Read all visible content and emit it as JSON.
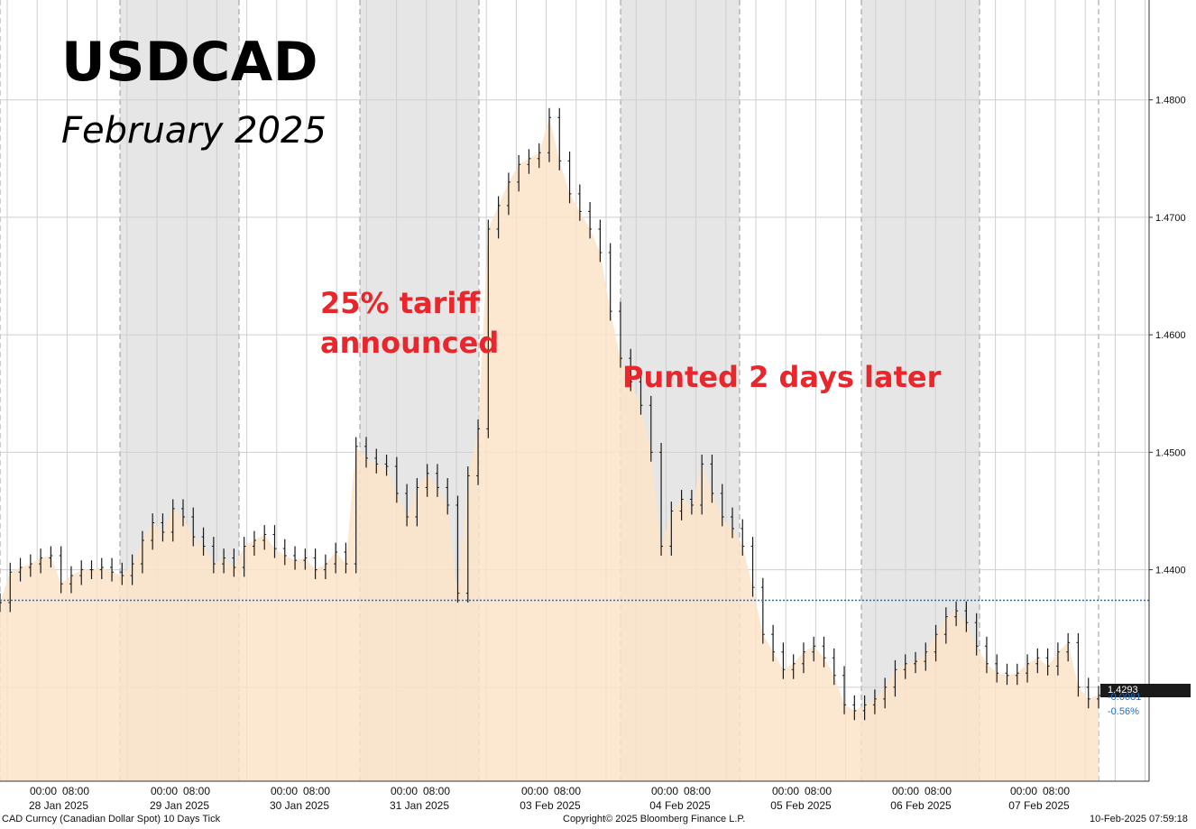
{
  "title": "USDCAD",
  "subtitle": "February 2025",
  "annotations": {
    "tariff_line1": "25% tariff",
    "tariff_line2": "announced",
    "punted": "Punted 2 days later"
  },
  "footer": {
    "left": "CAD Curncy (Canadian Dollar Spot) 10 Days  Tick",
    "center": "Copyright© 2025 Bloomberg Finance L.P.",
    "right": "10-Feb-2025 07:59:18"
  },
  "last_value": {
    "label": "1.4293",
    "change": "-0.0081",
    "change_pct": "-0.56%"
  },
  "colors": {
    "area_fill": "#fbe3c8",
    "weekend_shade": "#e6e6e6",
    "reference_line": "#1d6fd6",
    "annotation": "#e8262c",
    "bars": "#1a1a1a"
  },
  "chart_data": {
    "type": "area",
    "ylim": [
      1.422,
      1.4885
    ],
    "yticks": [
      "1.4300",
      "1.4400",
      "1.4500",
      "1.4600",
      "1.4700",
      "1.4800"
    ],
    "y_axis_position": "right",
    "grid": true,
    "reference_level": 1.4374,
    "days": [
      "28 Jan 2025",
      "29 Jan 2025",
      "30 Jan 2025",
      "31 Jan 2025",
      "03 Feb 2025",
      "04 Feb 2025",
      "05 Feb 2025",
      "06 Feb 2025",
      "07 Feb 2025"
    ],
    "hour_ticks": [
      "00:00",
      "08:00"
    ],
    "session_ticks_hours_from_start": [
      24,
      48,
      72,
      96,
      120,
      144,
      168,
      192
    ],
    "x_start": "27 Jan 2025 14:00",
    "shaded_hours": [
      [
        0,
        0
      ],
      [
        0,
        0
      ]
    ],
    "series": [
      {
        "hours": [
          0,
          2,
          4,
          6,
          8,
          10,
          12,
          14,
          16,
          18,
          20,
          22,
          24,
          26,
          28,
          30,
          32,
          34,
          36,
          38,
          40,
          42,
          44,
          46,
          48,
          50,
          52,
          54,
          56,
          58,
          60,
          62,
          64,
          66,
          68,
          70,
          72,
          74,
          76,
          78,
          80,
          82,
          84,
          86,
          88,
          90,
          92,
          94,
          96,
          98,
          100,
          102,
          104,
          106,
          108,
          110,
          112,
          114,
          116,
          118,
          120,
          122,
          124,
          126,
          128,
          130,
          132,
          134,
          136,
          138,
          140,
          142,
          144,
          146,
          148,
          150,
          152,
          154,
          156,
          158,
          160,
          162,
          164,
          166,
          168,
          170,
          172,
          174,
          176,
          178,
          180,
          182,
          184,
          186,
          188,
          190,
          192,
          194,
          196,
          198,
          200,
          202,
          204,
          206,
          208,
          210,
          212,
          214,
          216
        ],
        "values": [
          1.4372,
          1.4398,
          1.4402,
          1.4405,
          1.441,
          1.4412,
          1.4388,
          1.4395,
          1.44,
          1.44,
          1.4402,
          1.4398,
          1.4395,
          1.4405,
          1.4425,
          1.444,
          1.4432,
          1.4452,
          1.4445,
          1.4428,
          1.442,
          1.4405,
          1.441,
          1.4402,
          1.442,
          1.4425,
          1.443,
          1.4418,
          1.4412,
          1.4408,
          1.441,
          1.44,
          1.4405,
          1.4415,
          1.4405,
          1.4505,
          1.4495,
          1.449,
          1.4488,
          1.4465,
          1.4445,
          1.447,
          1.4482,
          1.447,
          1.4455,
          1.438,
          1.448,
          1.452,
          1.469,
          1.471,
          1.473,
          1.4745,
          1.475,
          1.4755,
          1.4785,
          1.4748,
          1.472,
          1.4705,
          1.469,
          1.467,
          1.462,
          1.458,
          1.456,
          1.454,
          1.45,
          1.442,
          1.445,
          1.446,
          1.4455,
          1.449,
          1.4465,
          1.4445,
          1.4435,
          1.442,
          1.4385,
          1.4345,
          1.433,
          1.4315,
          1.432,
          1.433,
          1.4335,
          1.4325,
          1.431,
          1.4285,
          1.428,
          1.4285,
          1.429,
          1.43,
          1.4315,
          1.432,
          1.4322,
          1.433,
          1.4345,
          1.436,
          1.4365,
          1.4355,
          1.4335,
          1.432,
          1.4312,
          1.431,
          1.4312,
          1.432,
          1.4325,
          1.4318,
          1.433,
          1.4338,
          1.43,
          1.429,
          1.4293
        ]
      }
    ]
  }
}
